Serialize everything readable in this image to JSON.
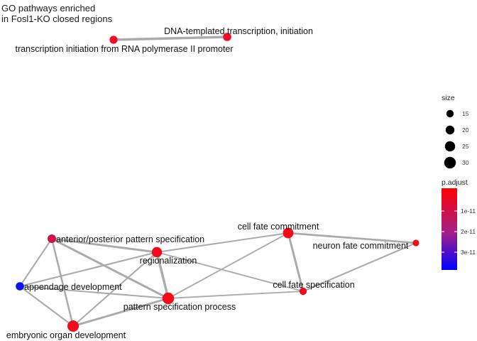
{
  "title_lines": [
    "GO pathways enriched",
    "in Fosl1-KO closed regions"
  ],
  "nodes": [
    {
      "id": "dna",
      "label": "DNA-templated transcription, initiation",
      "size": 18,
      "color": "#f20d22"
    },
    {
      "id": "tipol2",
      "label": "transcription initiation from RNA polymerase II promoter",
      "size": 17,
      "color": "#f20d20"
    },
    {
      "id": "ap",
      "label": "anterior/posterior pattern specification",
      "size": 19,
      "color": "#d0104a"
    },
    {
      "id": "reg",
      "label": "regionalization",
      "size": 25,
      "color": "#f20a20"
    },
    {
      "id": "cfc",
      "label": "cell fate commitment",
      "size": 26,
      "color": "#f80818"
    },
    {
      "id": "nfc",
      "label": "neuron fate commitment",
      "size": 12,
      "color": "#f00a1e"
    },
    {
      "id": "app",
      "label": "appendage development",
      "size": 18,
      "color": "#1010f0"
    },
    {
      "id": "cfs",
      "label": "cell fate specification",
      "size": 15,
      "color": "#f00a22"
    },
    {
      "id": "psp",
      "label": "pattern specification process",
      "size": 30,
      "color": "#f50a1a"
    },
    {
      "id": "eod",
      "label": "embryonic organ development",
      "size": 29,
      "color": "#f20c1e"
    }
  ],
  "edges": [
    {
      "from": "tipol2",
      "to": "dna",
      "weight": 1.0
    },
    {
      "from": "ap",
      "to": "reg",
      "weight": 0.8
    },
    {
      "from": "ap",
      "to": "psp",
      "weight": 0.8
    },
    {
      "from": "ap",
      "to": "app",
      "weight": 0.4
    },
    {
      "from": "ap",
      "to": "eod",
      "weight": 0.6
    },
    {
      "from": "reg",
      "to": "psp",
      "weight": 1.0
    },
    {
      "from": "reg",
      "to": "app",
      "weight": 0.4
    },
    {
      "from": "reg",
      "to": "eod",
      "weight": 0.4
    },
    {
      "from": "reg",
      "to": "cfs",
      "weight": 0.3
    },
    {
      "from": "reg",
      "to": "cfc",
      "weight": 0.4
    },
    {
      "from": "cfc",
      "to": "nfc",
      "weight": 0.7
    },
    {
      "from": "cfc",
      "to": "cfs",
      "weight": 0.8
    },
    {
      "from": "cfc",
      "to": "psp",
      "weight": 0.3
    },
    {
      "from": "cfs",
      "to": "nfc",
      "weight": 0.4
    },
    {
      "from": "cfs",
      "to": "psp",
      "weight": 0.3
    },
    {
      "from": "app",
      "to": "psp",
      "weight": 0.4
    },
    {
      "from": "app",
      "to": "eod",
      "weight": 0.4
    },
    {
      "from": "eod",
      "to": "psp",
      "weight": 0.8
    }
  ],
  "legend": {
    "size_title": "size",
    "size_items": [
      {
        "label": "15",
        "value": 15
      },
      {
        "label": "20",
        "value": 20
      },
      {
        "label": "25",
        "value": 25
      },
      {
        "label": "30",
        "value": 30
      }
    ],
    "color_title": "p.adjust",
    "color_ticks": [
      "1e-11",
      "2e-11",
      "3e-11"
    ],
    "gradient_top": "#ff0000",
    "gradient_mid": "#a0208a",
    "gradient_bottom": "#0000ff"
  }
}
